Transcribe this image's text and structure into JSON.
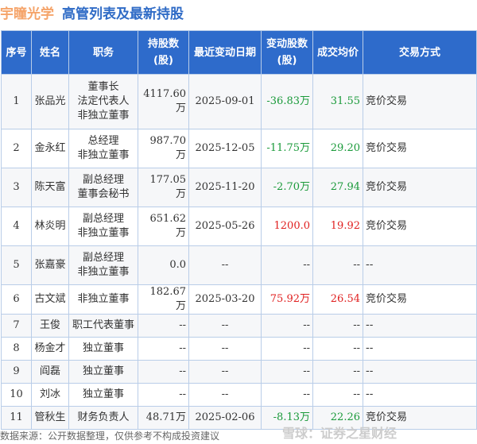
{
  "header": {
    "company": "宇瞳光学",
    "title": "高管列表及最新持股"
  },
  "table": {
    "columns": [
      "序号",
      "姓名",
      "职务",
      "持股数\n(股)",
      "最近变动日期",
      "变动股数\n(股)",
      "成交均价",
      "交易方式"
    ],
    "rows": [
      {
        "no": "1",
        "name": "张品光",
        "role": [
          "董事长",
          "法定代表人",
          "非独立董事"
        ],
        "shares": "4117.60万",
        "date": "2025-09-01",
        "change": "-36.83万",
        "change_dir": "neg",
        "price": "31.55",
        "method": "竞价交易"
      },
      {
        "no": "2",
        "name": "金永红",
        "role": [
          "总经理",
          "非独立董事"
        ],
        "shares": "987.70万",
        "date": "2025-12-05",
        "change": "-11.75万",
        "change_dir": "neg",
        "price": "29.20",
        "method": "竞价交易"
      },
      {
        "no": "3",
        "name": "陈天富",
        "role": [
          "副总经理",
          "董事会秘书"
        ],
        "shares": "177.05万",
        "date": "2025-11-20",
        "change": "-2.70万",
        "change_dir": "neg",
        "price": "27.94",
        "method": "竞价交易"
      },
      {
        "no": "4",
        "name": "林炎明",
        "role": [
          "副总经理",
          "非独立董事"
        ],
        "shares": "651.62万",
        "date": "2025-05-26",
        "change": "1200.0",
        "change_dir": "pos",
        "price": "19.92",
        "method": "竞价交易"
      },
      {
        "no": "5",
        "name": "张嘉豪",
        "role": [
          "副总经理",
          "非独立董事"
        ],
        "shares": "0.0",
        "date": "--",
        "change": "--",
        "change_dir": "",
        "price": "--",
        "method": "--"
      },
      {
        "no": "6",
        "name": "古文斌",
        "role": [
          "非独立董事"
        ],
        "shares": "182.67万",
        "date": "2025-03-20",
        "change": "75.92万",
        "change_dir": "pos",
        "price": "26.54",
        "method": "竞价交易"
      },
      {
        "no": "7",
        "name": "王俊",
        "role": [
          "职工代表董事"
        ],
        "shares": "--",
        "date": "--",
        "change": "--",
        "change_dir": "",
        "price": "--",
        "method": "--"
      },
      {
        "no": "8",
        "name": "杨金才",
        "role": [
          "独立董事"
        ],
        "shares": "--",
        "date": "--",
        "change": "--",
        "change_dir": "",
        "price": "--",
        "method": "--"
      },
      {
        "no": "9",
        "name": "阎磊",
        "role": [
          "独立董事"
        ],
        "shares": "--",
        "date": "--",
        "change": "--",
        "change_dir": "",
        "price": "--",
        "method": "--"
      },
      {
        "no": "10",
        "name": "刘冰",
        "role": [
          "独立董事"
        ],
        "shares": "--",
        "date": "--",
        "change": "--",
        "change_dir": "",
        "price": "--",
        "method": "--"
      },
      {
        "no": "11",
        "name": "管秋生",
        "role": [
          "财务负责人"
        ],
        "shares": "48.71万",
        "date": "2025-02-06",
        "change": "-8.13万",
        "change_dir": "neg",
        "price": "22.26",
        "method": "竞价交易"
      }
    ]
  },
  "footer": {
    "source": "数据来源：公开数据整理，仅供参考不构成投资建议",
    "watermark": "雪球：证券之星财经"
  }
}
